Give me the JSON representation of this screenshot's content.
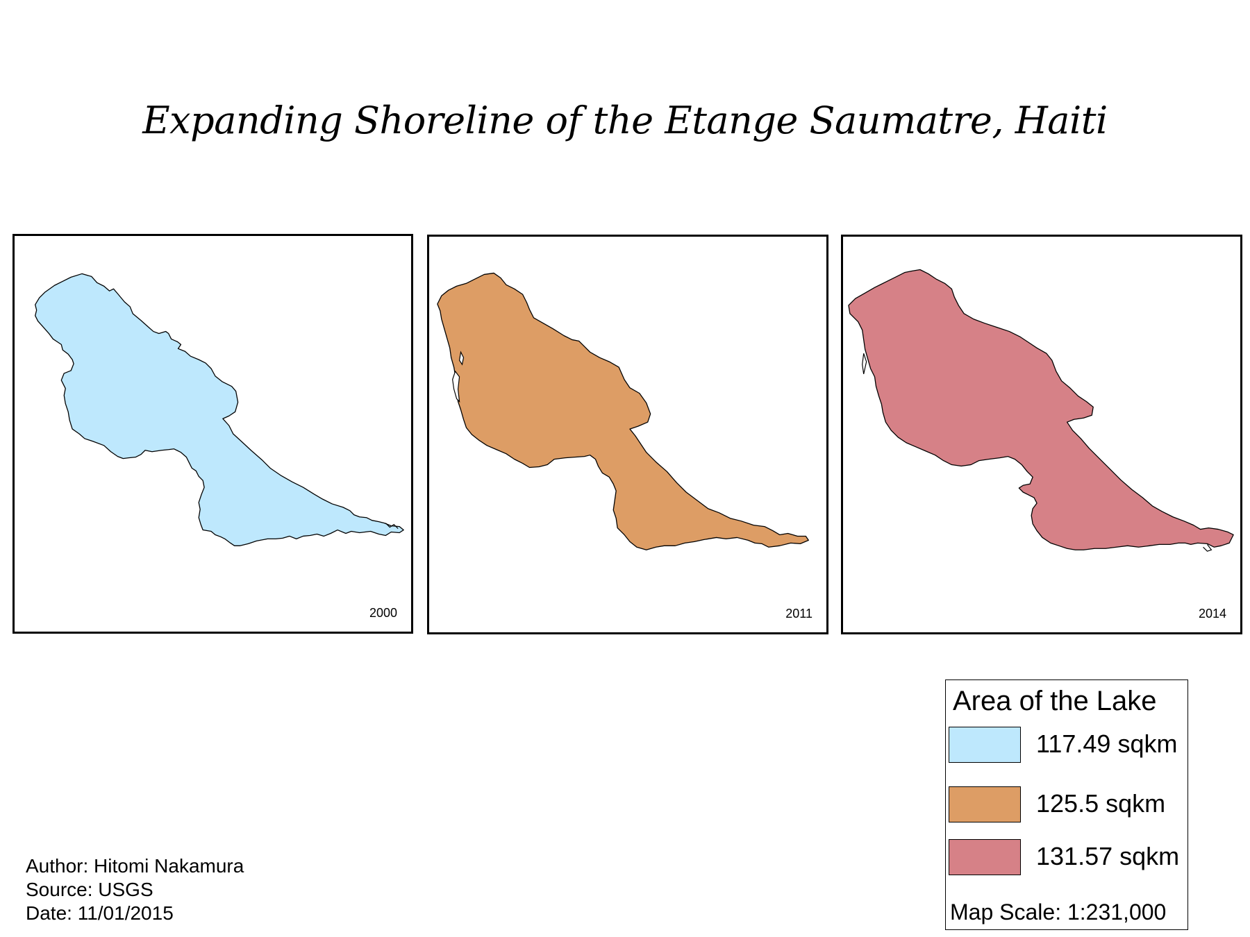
{
  "title": "Expanding Shoreline of the Etange Saumatre, Haiti",
  "maps": [
    {
      "year": "2000",
      "fill": "#bee8fd"
    },
    {
      "year": "2011",
      "fill": "#dd9d65"
    },
    {
      "year": "2014",
      "fill": "#d68187"
    }
  ],
  "legend": {
    "title": "Area of the Lake",
    "items": [
      {
        "label": "117.49 sqkm",
        "color": "#bee8fd"
      },
      {
        "label": "125.5 sqkm",
        "color": "#dd9d65"
      },
      {
        "label": "131.57 sqkm",
        "color": "#d68187"
      }
    ],
    "scale": "Map Scale: 1:231,000"
  },
  "credits": {
    "author": "Author: Hitomi Nakamura",
    "source": "Source: USGS",
    "date": "Date: 11/01/2015"
  }
}
